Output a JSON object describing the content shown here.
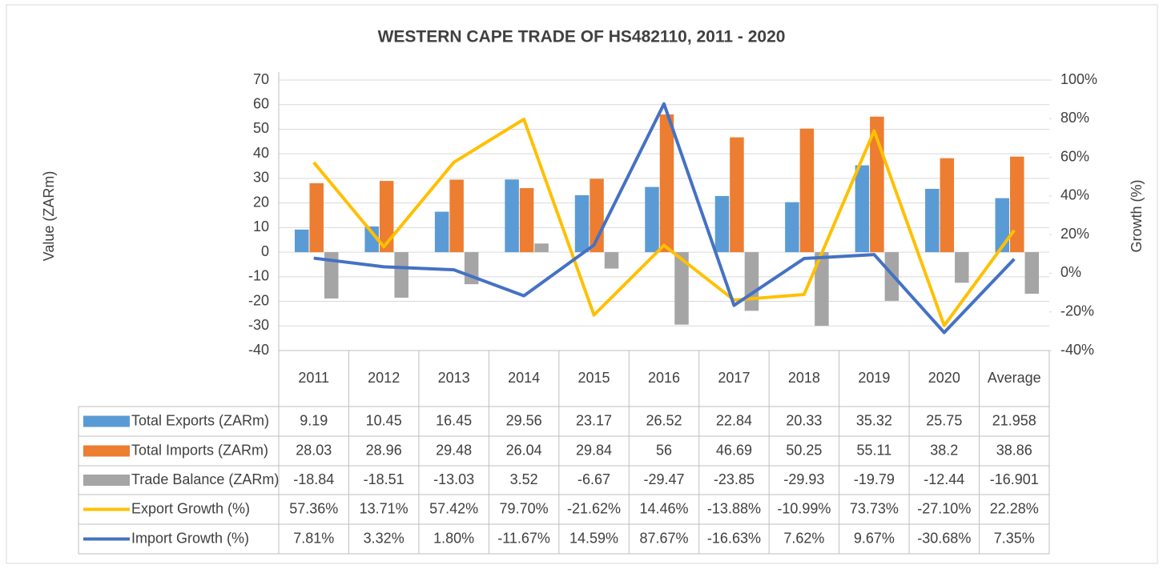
{
  "chart_data": {
    "type": "bar",
    "title": "WESTERN CAPE TRADE OF HS482110, 2011 - 2020",
    "y_label": "Value (ZARm)",
    "y2_label": "Growth (%)",
    "categories": [
      "2011",
      "2012",
      "2013",
      "2014",
      "2015",
      "2016",
      "2017",
      "2018",
      "2019",
      "2020",
      "Average"
    ],
    "ylim": [
      -40,
      70
    ],
    "yticks": [
      -40,
      -30,
      -20,
      -10,
      0,
      10,
      20,
      30,
      40,
      50,
      60,
      70
    ],
    "y2lim": [
      -40,
      100
    ],
    "y2ticks": [
      {
        "value": -40,
        "label": "-40%"
      },
      {
        "value": -20,
        "label": "-20%"
      },
      {
        "value": 0,
        "label": "0%"
      },
      {
        "value": 20,
        "label": "20%"
      },
      {
        "value": 40,
        "label": "40%"
      },
      {
        "value": 60,
        "label": "60%"
      },
      {
        "value": 80,
        "label": "80%"
      },
      {
        "value": 100,
        "label": "100%"
      }
    ],
    "grid": true,
    "series": [
      {
        "name": "Total Exports (ZARm)",
        "type": "bar",
        "color": "#5b9bd5",
        "values": [
          9.19,
          10.45,
          16.45,
          29.56,
          23.17,
          26.52,
          22.84,
          20.33,
          35.32,
          25.75,
          21.958
        ]
      },
      {
        "name": "Total Imports (ZARm)",
        "type": "bar",
        "color": "#ed7d31",
        "values": [
          28.03,
          28.96,
          29.48,
          26.04,
          29.84,
          56,
          46.69,
          50.25,
          55.11,
          38.2,
          38.86
        ]
      },
      {
        "name": "Trade Balance (ZARm)",
        "type": "bar",
        "color": "#a5a5a5",
        "values": [
          -18.84,
          -18.51,
          -13.03,
          3.52,
          -6.67,
          -29.47,
          -23.85,
          -29.93,
          -19.79,
          -12.44,
          -16.901
        ]
      },
      {
        "name": "Export Growth (%)",
        "type": "line",
        "axis": "y2",
        "color": "#ffc000",
        "values": [
          57.36,
          13.71,
          57.42,
          79.7,
          -21.62,
          14.46,
          -13.88,
          -10.99,
          73.73,
          -27.1,
          22.28
        ],
        "value_labels": [
          "57.36%",
          "13.71%",
          "57.42%",
          "79.70%",
          "-21.62%",
          "14.46%",
          "-13.88%",
          "-10.99%",
          "73.73%",
          "-27.10%",
          "22.28%"
        ]
      },
      {
        "name": "Import Growth (%)",
        "type": "line",
        "axis": "y2",
        "color": "#4472c4",
        "values": [
          7.81,
          3.32,
          1.8,
          -11.67,
          14.59,
          87.67,
          -16.63,
          7.62,
          9.67,
          -30.68,
          7.35
        ],
        "value_labels": [
          "7.81%",
          "3.32%",
          "1.80%",
          "-11.67%",
          "14.59%",
          "87.67%",
          "-16.63%",
          "7.62%",
          "9.67%",
          "-30.68%",
          "7.35%"
        ]
      }
    ]
  }
}
